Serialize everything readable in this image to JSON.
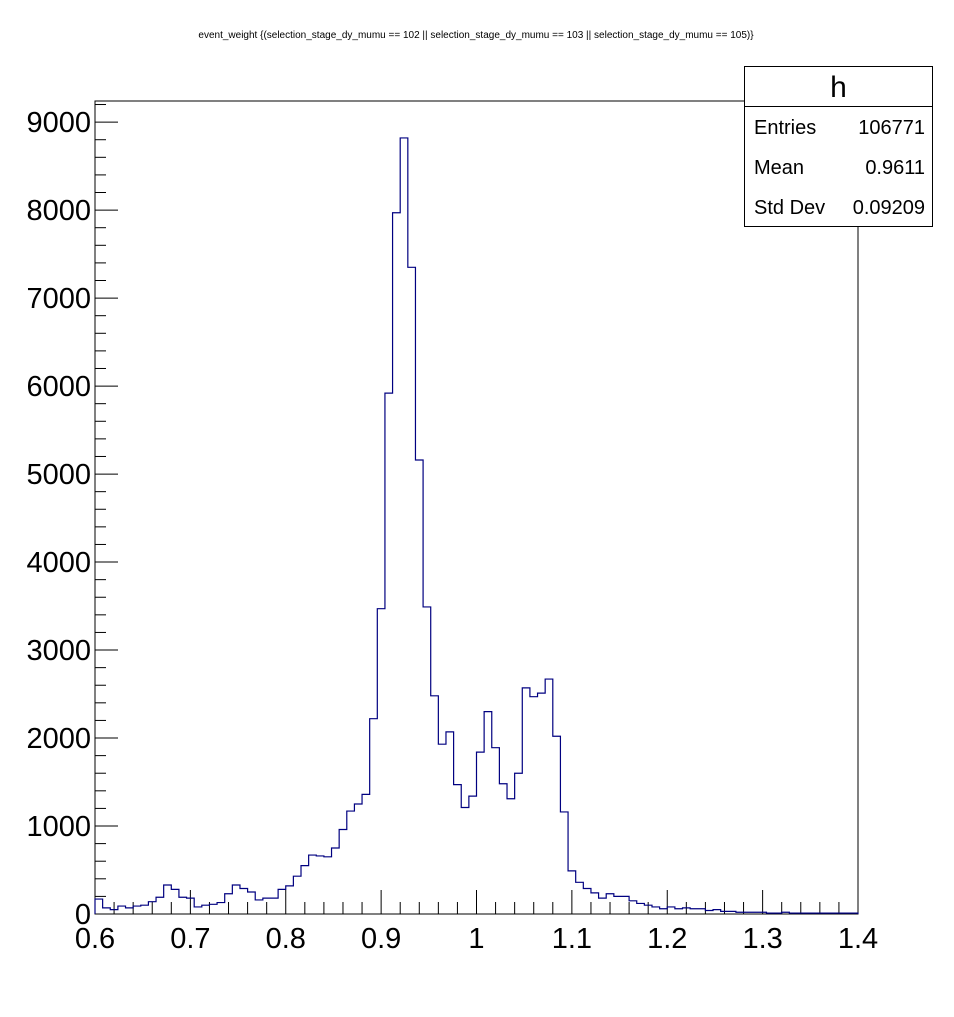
{
  "chart_data": {
    "type": "histogram",
    "title": "event_weight {(selection_stage_dy_mumu == 102 || selection_stage_dy_mumu == 103 || selection_stage_dy_mumu == 105)}",
    "xlabel": "",
    "ylabel": "",
    "xlim": [
      0.6,
      1.4
    ],
    "ylim": [
      0,
      9240
    ],
    "grid": false,
    "x_ticks": [
      "0.6",
      "0.7",
      "0.8",
      "0.9",
      "1",
      "1.1",
      "1.2",
      "1.3",
      "1.4"
    ],
    "y_ticks": [
      "0",
      "1000",
      "2000",
      "3000",
      "4000",
      "5000",
      "6000",
      "7000",
      "8000",
      "9000"
    ],
    "bin_width": 0.008,
    "bin_start": 0.6,
    "values": [
      170,
      70,
      50,
      90,
      70,
      90,
      100,
      140,
      190,
      330,
      280,
      190,
      180,
      80,
      100,
      110,
      130,
      230,
      330,
      290,
      250,
      160,
      180,
      180,
      280,
      320,
      430,
      550,
      670,
      660,
      650,
      750,
      960,
      1170,
      1250,
      1360,
      2220,
      3470,
      5920,
      7970,
      8820,
      7350,
      5160,
      3490,
      2480,
      1930,
      2070,
      1470,
      1210,
      1340,
      1840,
      2300,
      1890,
      1480,
      1310,
      1600,
      2570,
      2470,
      2510,
      2670,
      2020,
      1160,
      490,
      360,
      290,
      240,
      180,
      230,
      200,
      200,
      150,
      120,
      100,
      80,
      60,
      80,
      60,
      70,
      60,
      60,
      40,
      50,
      30,
      30,
      20,
      20,
      20,
      20,
      10,
      10,
      20,
      10,
      10,
      10,
      10,
      10,
      10,
      10,
      10,
      10
    ],
    "line_color": "#000080",
    "legend": "top-right"
  },
  "stats": {
    "name": "h",
    "entries_label": "Entries",
    "entries_value": "106771",
    "mean_label": "Mean",
    "mean_value": "0.9611",
    "stddev_label": "Std Dev",
    "stddev_value": "0.09209"
  }
}
